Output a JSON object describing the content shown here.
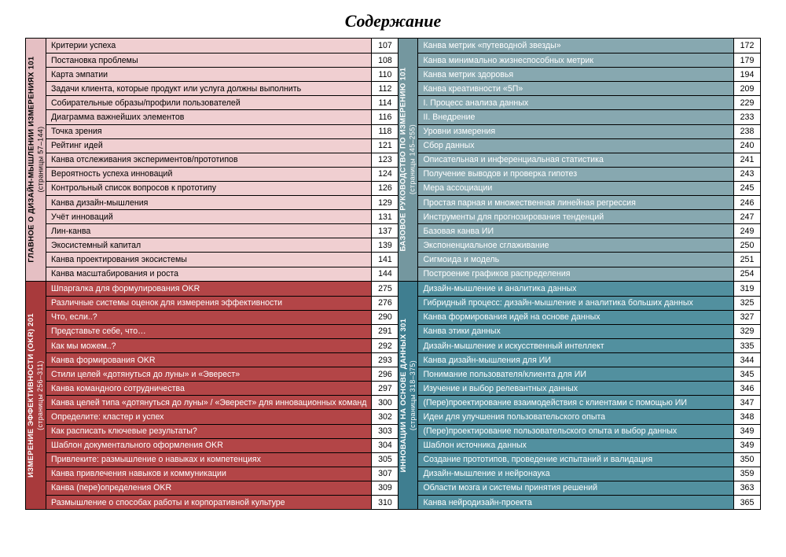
{
  "title": "Содержание",
  "colors": {
    "q1_header_bg": "#e5bfc3",
    "q1_row_bg": "#f0cfd1",
    "q2_header_bg": "#74979f",
    "q2_row_bg": "#87a8b0",
    "q3_header_bg": "#a83a3c",
    "q3_row_bg": "#b34547",
    "q4_header_bg": "#3f7e90",
    "q4_row_bg": "#52909f",
    "q1_text": "#000000",
    "q2_text": "#ffffff",
    "q3_text": "#ffffff",
    "q4_text": "#ffffff",
    "border": "#000000",
    "page_bg": "#ffffff",
    "page_text": "#000000"
  },
  "sections": [
    {
      "id": "q1",
      "title": "ГЛАВНОЕ О ДИЗАЙН-МЫШЛЕНИИ ИЗМЕРЕНИЯХ 101",
      "subtitle": "(страницы 57–144)",
      "rows": [
        {
          "label": "Критерии успеха",
          "page": 107
        },
        {
          "label": "Постановка проблемы",
          "page": 108
        },
        {
          "label": "Карта эмпатии",
          "page": 110
        },
        {
          "label": "Задачи клиента, которые продукт или услуга должны выполнить",
          "page": 112
        },
        {
          "label": "Собирательные образы/профили пользователей",
          "page": 114
        },
        {
          "label": "Диаграмма важнейших элементов",
          "page": 116
        },
        {
          "label": "Точка зрения",
          "page": 118
        },
        {
          "label": "Рейтинг идей",
          "page": 121
        },
        {
          "label": "Канва отслеживания экспериментов/прототипов",
          "page": 123
        },
        {
          "label": "Вероятность успеха инноваций",
          "page": 124
        },
        {
          "label": "Контрольный список вопросов к прототипу",
          "page": 126
        },
        {
          "label": "Канва дизайн-мышления",
          "page": 129
        },
        {
          "label": "Учёт инноваций",
          "page": 131
        },
        {
          "label": "Лин-канва",
          "page": 137
        },
        {
          "label": "Экосистемный капитал",
          "page": 139
        },
        {
          "label": "Канва проектирования экосистемы",
          "page": 141
        },
        {
          "label": "Канва масштабирования и роста",
          "page": 144
        }
      ]
    },
    {
      "id": "q2",
      "title": "БАЗОВОЕ РУКОВОДСТВО ПО ИЗМЕРЕНИЮ 101",
      "subtitle": "(страницы 145–255)",
      "rows": [
        {
          "label": "Канва метрик «путеводной звезды»",
          "page": 172
        },
        {
          "label": "Канва минимально жизнеспособных метрик",
          "page": 179
        },
        {
          "label": "Канва метрик здоровья",
          "page": 194
        },
        {
          "label": "Канва креативности «5П»",
          "page": 209
        },
        {
          "label": "I. Процесс анализа данных",
          "page": 229
        },
        {
          "label": "II. Внедрение",
          "page": 233
        },
        {
          "label": "Уровни измерения",
          "page": 238
        },
        {
          "label": "Сбор данных",
          "page": 240
        },
        {
          "label": "Описательная и инференциальная статистика",
          "page": 241
        },
        {
          "label": "Получение выводов и проверка гипотез",
          "page": 243
        },
        {
          "label": "Мера ассоциации",
          "page": 245
        },
        {
          "label": "Простая парная и множественная линейная регрессия",
          "page": 246
        },
        {
          "label": "Инструменты для прогнозирования тенденций",
          "page": 247
        },
        {
          "label": "Базовая канва ИИ",
          "page": 249
        },
        {
          "label": "Экспоненциальное сглаживание",
          "page": 250
        },
        {
          "label": "Сигмоида и модель",
          "page": 251
        },
        {
          "label": "Построение графиков распределения",
          "page": 254
        }
      ]
    },
    {
      "id": "q3",
      "title": "ИЗМЕРЕНИЕ ЭФФЕКТИВНОСТИ (OKR) 201",
      "subtitle": "(страницы 256–311)",
      "rows": [
        {
          "label": "Шпаргалка для формулирования OKR",
          "page": 275
        },
        {
          "label": "Различные системы оценок для измерения эффективности",
          "page": 276
        },
        {
          "label": "Что, если..?",
          "page": 290
        },
        {
          "label": "Представьте себе, что…",
          "page": 291
        },
        {
          "label": "Как мы можем..?",
          "page": 292
        },
        {
          "label": "Канва формирования OKR",
          "page": 293
        },
        {
          "label": "Стили целей «дотянуться до луны» и «Эверест»",
          "page": 296
        },
        {
          "label": "Канва командного сотрудничества",
          "page": 297
        },
        {
          "label": "Канва целей типа «дотянуться до луны» / «Эверест» для инновационных команд",
          "page": 300
        },
        {
          "label": "Определите: кластер и успех",
          "page": 302
        },
        {
          "label": "Как расписать ключевые результаты?",
          "page": 303
        },
        {
          "label": "Шаблон документального оформления OKR",
          "page": 304
        },
        {
          "label": "Привлеките: размышление о навыках и компетенциях",
          "page": 305
        },
        {
          "label": "Канва привлечения навыков и коммуникации",
          "page": 307
        },
        {
          "label": "Канва (пере)определения OKR",
          "page": 309
        },
        {
          "label": "Размышление о способах работы и корпоративной культуре",
          "page": 310
        }
      ]
    },
    {
      "id": "q4",
      "title": "ИННОВАЦИИ НА ОСНОВЕ ДАННЫХ 301",
      "subtitle": "(страницы 318–375)",
      "rows": [
        {
          "label": "Дизайн-мышление и аналитика данных",
          "page": 319
        },
        {
          "label": "Гибридный процесс: дизайн-мышление и аналитика больших данных",
          "page": 325
        },
        {
          "label": "Канва формирования идей на основе данных",
          "page": 327
        },
        {
          "label": "Канва этики данных",
          "page": 329
        },
        {
          "label": "Дизайн-мышление и искусственный интеллект",
          "page": 335
        },
        {
          "label": "Канва дизайн-мышления для ИИ",
          "page": 344
        },
        {
          "label": "Понимание пользователя/клиента для ИИ",
          "page": 345
        },
        {
          "label": "Изучение и выбор релевантных данных",
          "page": 346
        },
        {
          "label": "(Пере)проектирование взаимодействия с клиентами с помощью ИИ",
          "page": 347
        },
        {
          "label": "Идеи для улучшения пользовательского опыта",
          "page": 348
        },
        {
          "label": "(Пере)проектирование пользовательского опыта и выбор данных",
          "page": 349
        },
        {
          "label": "Шаблон источника данных",
          "page": 349
        },
        {
          "label": "Создание прототипов, проведение испытаний и валидация",
          "page": 350
        },
        {
          "label": "Дизайн-мышление и нейронаука",
          "page": 359
        },
        {
          "label": "Области мозга и системы принятия решений",
          "page": 363
        },
        {
          "label": "Канва нейродизайн-проекта",
          "page": 365
        }
      ]
    }
  ]
}
